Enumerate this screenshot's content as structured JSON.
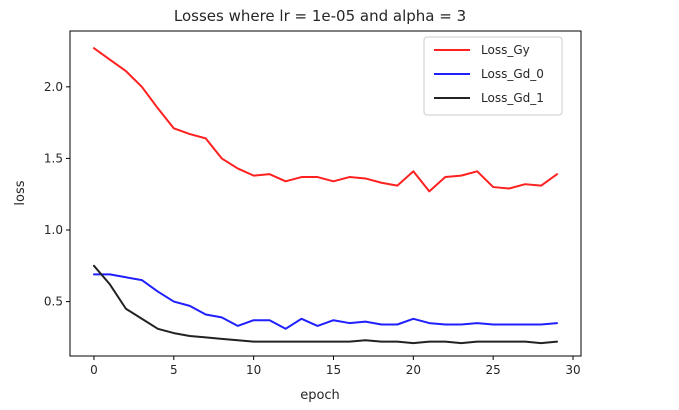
{
  "chart_data": {
    "type": "line",
    "title": "Losses where lr = 1e-05 and alpha = 3",
    "xlabel": "epoch",
    "ylabel": "loss",
    "xlim": [
      -1.5,
      30.5
    ],
    "ylim": [
      0.12,
      2.39
    ],
    "xticks": [
      0,
      5,
      10,
      15,
      20,
      25,
      30
    ],
    "yticks": [
      0.5,
      1.0,
      1.5,
      2.0
    ],
    "ytick_labels": [
      "0.5",
      "1.0",
      "1.5",
      "2.0"
    ],
    "legend_position": "top-right",
    "grid": false,
    "x": [
      0,
      1,
      2,
      3,
      4,
      5,
      6,
      7,
      8,
      9,
      10,
      11,
      12,
      13,
      14,
      15,
      16,
      17,
      18,
      19,
      20,
      21,
      22,
      23,
      24,
      25,
      26,
      27,
      28,
      29
    ],
    "series": [
      {
        "name": "Loss_Gy",
        "color": "#ff2020",
        "values": [
          2.27,
          2.19,
          2.11,
          2.0,
          1.85,
          1.71,
          1.67,
          1.64,
          1.5,
          1.43,
          1.38,
          1.39,
          1.34,
          1.37,
          1.37,
          1.34,
          1.37,
          1.36,
          1.33,
          1.31,
          1.41,
          1.27,
          1.37,
          1.38,
          1.41,
          1.3,
          1.29,
          1.32,
          1.31,
          1.39
        ]
      },
      {
        "name": "Loss_Gd_0",
        "color": "#2020ff",
        "values": [
          0.69,
          0.69,
          0.67,
          0.65,
          0.57,
          0.5,
          0.47,
          0.41,
          0.39,
          0.33,
          0.37,
          0.37,
          0.31,
          0.38,
          0.33,
          0.37,
          0.35,
          0.36,
          0.34,
          0.34,
          0.38,
          0.35,
          0.34,
          0.34,
          0.35,
          0.34,
          0.34,
          0.34,
          0.34,
          0.35
        ]
      },
      {
        "name": "Loss_Gd_1",
        "color": "#222222",
        "values": [
          0.75,
          0.62,
          0.45,
          0.38,
          0.31,
          0.28,
          0.26,
          0.25,
          0.24,
          0.23,
          0.22,
          0.22,
          0.22,
          0.22,
          0.22,
          0.22,
          0.22,
          0.23,
          0.22,
          0.22,
          0.21,
          0.22,
          0.22,
          0.21,
          0.22,
          0.22,
          0.22,
          0.22,
          0.21,
          0.22
        ]
      }
    ]
  }
}
